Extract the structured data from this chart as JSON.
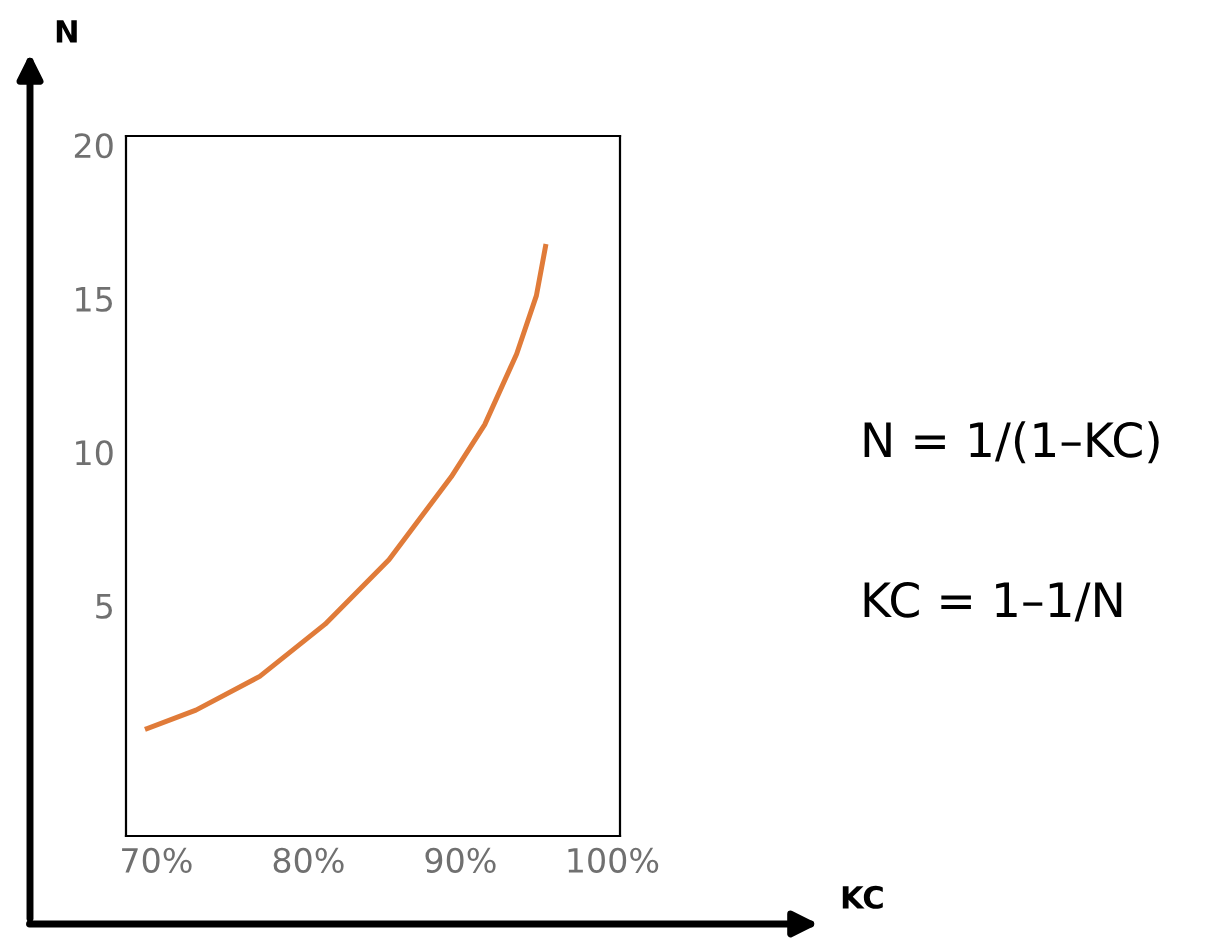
{
  "chart_data": {
    "type": "line",
    "x": [
      69.4,
      72.6,
      76.8,
      81.1,
      85.3,
      89.4,
      91.6,
      93.7,
      95.0,
      95.6
    ],
    "series": [
      {
        "color": "#e07b39",
        "values": [
          1.0,
          1.6,
          2.7,
          4.4,
          6.5,
          9.2,
          10.9,
          13.2,
          15.1,
          16.7
        ]
      }
    ],
    "xlim": [
      68,
      100.5
    ],
    "xticks": [
      {
        "value": 70,
        "label": "70%"
      },
      {
        "value": 80,
        "label": "80%"
      },
      {
        "value": 90,
        "label": "90%"
      },
      {
        "value": 100,
        "label": "100%"
      }
    ],
    "ylim": [
      -2.5,
      20.3
    ],
    "yticks": [
      5,
      10,
      15,
      20
    ],
    "grid": false,
    "legend": false,
    "marker": "none",
    "line_style": "solid",
    "annotations": [
      "N",
      "KC",
      "N = 1/(1–KC)",
      "KC = 1–1/N"
    ]
  }
}
